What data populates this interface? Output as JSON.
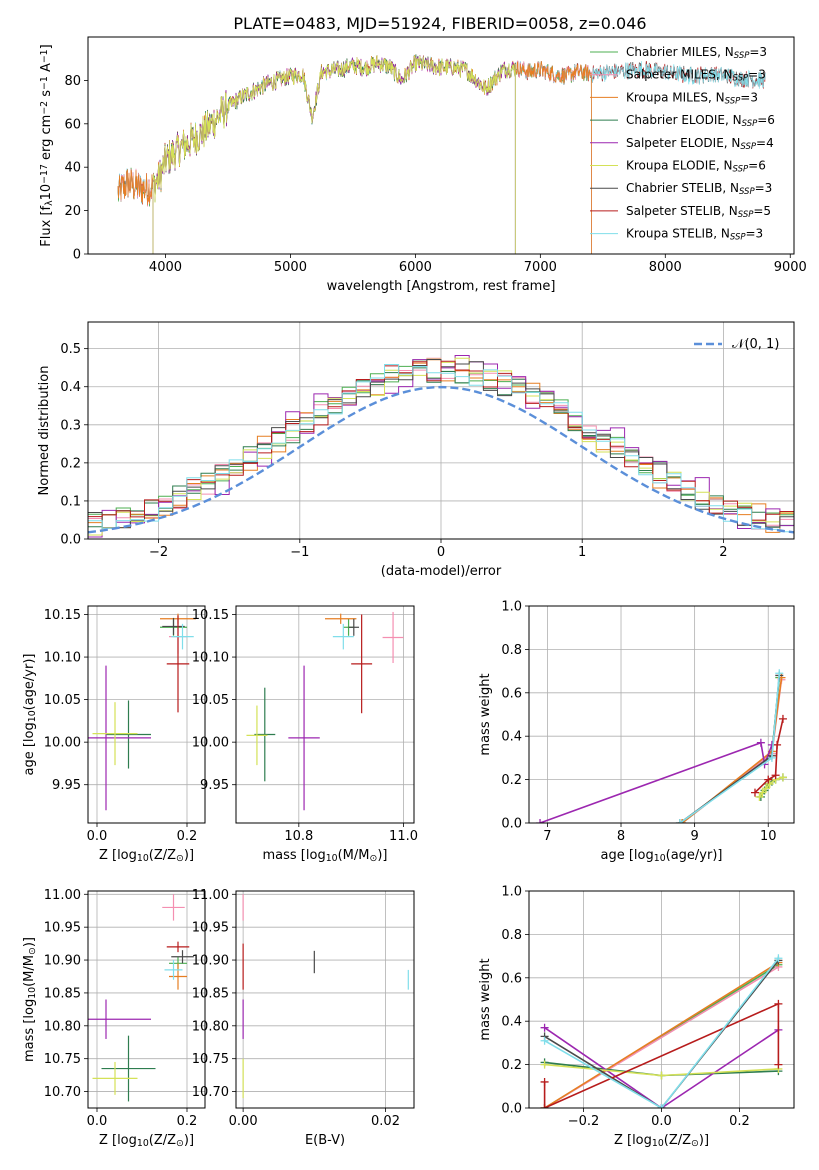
{
  "figure_title": "PLATE=0483, MJD=51924, FIBERID=0058, z=0.046",
  "colors": {
    "chabrier_miles": "#4caf50",
    "salpeter_miles": "#f48fb1",
    "kroupa_miles": "#e67e22",
    "chabrier_elodie": "#2e7d4f",
    "salpeter_elodie": "#9c27b0",
    "kroupa_elodie": "#d4e157",
    "chabrier_stelib": "#4a4a4a",
    "salpeter_stelib": "#b71c1c",
    "kroupa_stelib": "#80deea",
    "normal_curve": "#5b8fd9",
    "grid": "#b0b0b0"
  },
  "chart_data": [
    {
      "id": "spectrum",
      "type": "line",
      "xlabel": "wavelength [Angstrom, rest frame]",
      "ylabel_parts": [
        "Flux [f",
        "λ",
        "10",
        "−17",
        " erg cm",
        "−2",
        " s",
        "−1",
        " A",
        "−1",
        "]"
      ],
      "xlim": [
        3380,
        9030
      ],
      "ylim": [
        0,
        100
      ],
      "xticks": [
        4000,
        5000,
        6000,
        7000,
        8000,
        9000
      ],
      "yticks": [
        0,
        20,
        40,
        60,
        80
      ],
      "grid": false,
      "legend_location": "top-right",
      "legend": [
        {
          "key": "chabrier_miles",
          "label": "Chabrier MILES, N",
          "sub": "SSP",
          "tail": "=3"
        },
        {
          "key": "salpeter_miles",
          "label": "Salpeter MILES, N",
          "sub": "SSP",
          "tail": "=3"
        },
        {
          "key": "kroupa_miles",
          "label": "Kroupa MILES, N",
          "sub": "SSP",
          "tail": "=3"
        },
        {
          "key": "chabrier_elodie",
          "label": "Chabrier ELODIE, N",
          "sub": "SSP",
          "tail": "=6"
        },
        {
          "key": "salpeter_elodie",
          "label": "Salpeter ELODIE, N",
          "sub": "SSP",
          "tail": "=4"
        },
        {
          "key": "kroupa_elodie",
          "label": "Kroupa ELODIE, N",
          "sub": "SSP",
          "tail": "=6"
        },
        {
          "key": "chabrier_stelib",
          "label": "Chabrier STELIB, N",
          "sub": "SSP",
          "tail": "=3"
        },
        {
          "key": "salpeter_stelib",
          "label": "Salpeter STELIB, N",
          "sub": "SSP",
          "tail": "=5"
        },
        {
          "key": "kroupa_stelib",
          "label": "Kroupa STELIB, N",
          "sub": "SSP",
          "tail": "=3"
        }
      ],
      "spectrum_anchor_points": {
        "x": [
          3620,
          3700,
          3800,
          3900,
          3950,
          4000,
          4100,
          4200,
          4300,
          4400,
          4500,
          4600,
          4700,
          4800,
          4900,
          5000,
          5100,
          5175,
          5250,
          5400,
          5500,
          5600,
          5700,
          5800,
          5890,
          6000,
          6100,
          6200,
          6300,
          6400,
          6563,
          6700,
          6800,
          6900,
          7000,
          7100,
          7200,
          7300,
          7400,
          7600,
          7800,
          8000,
          8200,
          8400,
          8600,
          8800
        ],
        "y": [
          28,
          33,
          30,
          31,
          35,
          43,
          48,
          52,
          56,
          62,
          68,
          72,
          75,
          78,
          80,
          82,
          83,
          63,
          84,
          85,
          87,
          86,
          88,
          86,
          80,
          88,
          87,
          86,
          86,
          85,
          76,
          85,
          86,
          84,
          85,
          83,
          82,
          84,
          83,
          84,
          85,
          84,
          82,
          83,
          81,
          80
        ]
      },
      "coverage": {
        "miles": [
          3620,
          7410
        ],
        "elodie": [
          3900,
          6800
        ],
        "stelib": [
          3620,
          8800
        ]
      }
    },
    {
      "id": "residuals",
      "type": "histogram",
      "xlabel": "(data-model)/error",
      "ylabel": "Normed distribution",
      "xlim": [
        -2.5,
        2.5
      ],
      "ylim": [
        0,
        0.57
      ],
      "xticks": [
        -2,
        -1,
        0,
        1,
        2
      ],
      "yticks": [
        0.0,
        0.1,
        0.2,
        0.3,
        0.4,
        0.5
      ],
      "grid": true,
      "legend_location": "top-right",
      "reference_curve": {
        "label": "𝒩(0, 1)",
        "mean": 0,
        "sigma": 1
      },
      "bins": {
        "start": -2.5,
        "width": 0.1,
        "count": 50
      }
    },
    {
      "id": "age_vs_Z",
      "type": "scatter",
      "xlabel_parts": [
        "Z [log",
        "10",
        "(Z/Z",
        "⊙",
        ")]"
      ],
      "ylabel_parts": [
        "age  [log",
        "10",
        "(age/yr)]"
      ],
      "xlim": [
        -0.02,
        0.24
      ],
      "ylim": [
        9.905,
        10.16
      ],
      "xticks": [
        0.0,
        0.2
      ],
      "yticks": [
        9.95,
        10.0,
        10.05,
        10.1,
        10.15
      ],
      "grid": true,
      "points": [
        {
          "key": "chabrier_miles",
          "x": 0.17,
          "xerr": 0.03,
          "y": 10.135,
          "yerr": 0.01
        },
        {
          "key": "salpeter_miles",
          "x": 0.18,
          "xerr": 0.02,
          "y": 10.124,
          "yerr": 0.02
        },
        {
          "key": "kroupa_miles",
          "x": 0.18,
          "xerr": 0.04,
          "y": 10.145,
          "yerr": 0.006
        },
        {
          "key": "chabrier_elodie",
          "x": 0.07,
          "xerr": 0.05,
          "y": 10.009,
          "yerr": 0.04
        },
        {
          "key": "salpeter_elodie",
          "x": 0.02,
          "xerr": 0.1,
          "y": 10.005,
          "yerr": 0.085
        },
        {
          "key": "kroupa_elodie",
          "x": 0.04,
          "xerr": 0.05,
          "y": 10.01,
          "yerr": 0.037
        },
        {
          "key": "chabrier_stelib",
          "x": 0.17,
          "xerr": 0.025,
          "y": 10.136,
          "yerr": 0.01
        },
        {
          "key": "salpeter_stelib",
          "x": 0.18,
          "xerr": 0.025,
          "y": 10.092,
          "yerr": 0.057
        },
        {
          "key": "kroupa_stelib",
          "x": 0.19,
          "xerr": 0.025,
          "y": 10.124,
          "yerr": 0.015
        }
      ]
    },
    {
      "id": "age_vs_mass",
      "type": "scatter",
      "xlabel_parts": [
        "mass [log",
        "10",
        "(M/M",
        "⊙",
        ")]"
      ],
      "ylabel_parts": [],
      "xlim": [
        10.68,
        11.02
      ],
      "ylim": [
        9.905,
        10.16
      ],
      "xticks": [
        10.8,
        11.0
      ],
      "yticks": [
        9.95,
        10.0,
        10.05,
        10.1,
        10.15
      ],
      "grid": true,
      "points": [
        {
          "key": "chabrier_miles",
          "x": 10.895,
          "xerr": 0.01,
          "y": 10.135,
          "yerr": 0.01
        },
        {
          "key": "salpeter_miles",
          "x": 10.98,
          "xerr": 0.02,
          "y": 10.123,
          "yerr": 0.03
        },
        {
          "key": "kroupa_miles",
          "x": 10.88,
          "xerr": 0.03,
          "y": 10.145,
          "yerr": 0.006
        },
        {
          "key": "chabrier_elodie",
          "x": 10.735,
          "xerr": 0.02,
          "y": 10.009,
          "yerr": 0.055
        },
        {
          "key": "salpeter_elodie",
          "x": 10.81,
          "xerr": 0.03,
          "y": 10.005,
          "yerr": 0.085
        },
        {
          "key": "kroupa_elodie",
          "x": 10.72,
          "xerr": 0.02,
          "y": 10.008,
          "yerr": 0.035
        },
        {
          "key": "chabrier_stelib",
          "x": 10.905,
          "xerr": 0.01,
          "y": 10.135,
          "yerr": 0.01
        },
        {
          "key": "salpeter_stelib",
          "x": 10.92,
          "xerr": 0.02,
          "y": 10.092,
          "yerr": 0.058
        },
        {
          "key": "kroupa_stelib",
          "x": 10.885,
          "xerr": 0.02,
          "y": 10.124,
          "yerr": 0.015
        }
      ]
    },
    {
      "id": "weight_vs_age",
      "type": "line",
      "xlabel_parts": [
        "age  [log",
        "10",
        "(age/yr)]"
      ],
      "ylabel": "mass weight",
      "xlim": [
        6.75,
        10.35
      ],
      "ylim": [
        0,
        1.0
      ],
      "xticks": [
        7,
        8,
        9,
        10
      ],
      "yticks": [
        0.0,
        0.2,
        0.4,
        0.6,
        0.8,
        1.0
      ],
      "grid": true,
      "series": [
        {
          "key": "chabrier_miles",
          "x": [
            8.83,
            10.05,
            10.15
          ],
          "y": [
            0.0,
            0.32,
            0.67
          ]
        },
        {
          "key": "salpeter_miles",
          "x": [
            8.83,
            10.05,
            10.18
          ],
          "y": [
            0.0,
            0.32,
            0.66
          ]
        },
        {
          "key": "kroupa_miles",
          "x": [
            8.83,
            10.05,
            10.18
          ],
          "y": [
            0.0,
            0.33,
            0.67
          ]
        },
        {
          "key": "chabrier_elodie",
          "x": [
            9.9,
            9.95,
            10.0,
            10.05,
            10.1,
            10.2
          ],
          "y": [
            0.12,
            0.15,
            0.18,
            0.19,
            0.2,
            0.21
          ]
        },
        {
          "key": "salpeter_elodie",
          "x": [
            6.9,
            9.9,
            9.95,
            10.05
          ],
          "y": [
            0.0,
            0.37,
            0.27,
            0.36
          ]
        },
        {
          "key": "kroupa_elodie",
          "x": [
            9.88,
            9.92,
            9.97,
            10.02,
            10.1,
            10.2
          ],
          "y": [
            0.12,
            0.14,
            0.16,
            0.18,
            0.2,
            0.21
          ]
        },
        {
          "key": "chabrier_stelib",
          "x": [
            8.8,
            10.05,
            10.15
          ],
          "y": [
            0.0,
            0.31,
            0.68
          ]
        },
        {
          "key": "salpeter_stelib",
          "x": [
            9.82,
            10.0,
            10.1,
            10.12,
            10.2
          ],
          "y": [
            0.14,
            0.2,
            0.22,
            0.36,
            0.48
          ]
        },
        {
          "key": "kroupa_stelib",
          "x": [
            8.8,
            10.05,
            10.15
          ],
          "y": [
            0.0,
            0.3,
            0.69
          ]
        }
      ]
    },
    {
      "id": "mass_vs_Z",
      "type": "scatter",
      "xlabel_parts": [
        "Z [log",
        "10",
        "(Z/Z",
        "⊙",
        ")]"
      ],
      "ylabel_parts": [
        "mass [log",
        "10",
        "(M/M",
        "⊙",
        ")]"
      ],
      "xlim": [
        -0.02,
        0.24
      ],
      "ylim": [
        10.675,
        11.005
      ],
      "xticks": [
        0.0,
        0.2
      ],
      "yticks": [
        10.7,
        10.75,
        10.8,
        10.85,
        10.9,
        10.95,
        11.0
      ],
      "grid": true,
      "points": [
        {
          "key": "chabrier_miles",
          "x": 0.18,
          "xerr": 0.02,
          "y": 10.895,
          "yerr": 0.01
        },
        {
          "key": "salpeter_miles",
          "x": 0.17,
          "xerr": 0.025,
          "y": 10.98,
          "yerr": 0.02
        },
        {
          "key": "kroupa_miles",
          "x": 0.18,
          "xerr": 0.02,
          "y": 10.875,
          "yerr": 0.02
        },
        {
          "key": "chabrier_elodie",
          "x": 0.07,
          "xerr": 0.06,
          "y": 10.735,
          "yerr": 0.05
        },
        {
          "key": "salpeter_elodie",
          "x": 0.02,
          "xerr": 0.1,
          "y": 10.81,
          "yerr": 0.03
        },
        {
          "key": "kroupa_elodie",
          "x": 0.04,
          "xerr": 0.05,
          "y": 10.72,
          "yerr": 0.025
        },
        {
          "key": "chabrier_stelib",
          "x": 0.19,
          "xerr": 0.025,
          "y": 10.905,
          "yerr": 0.01
        },
        {
          "key": "salpeter_stelib",
          "x": 0.18,
          "xerr": 0.025,
          "y": 10.92,
          "yerr": 0.008
        },
        {
          "key": "kroupa_stelib",
          "x": 0.17,
          "xerr": 0.02,
          "y": 10.885,
          "yerr": 0.015
        }
      ]
    },
    {
      "id": "mass_vs_ebv",
      "type": "scatter",
      "xlabel": "E(B-V)",
      "ylabel_parts": [],
      "xlim": [
        -0.001,
        0.024
      ],
      "ylim": [
        10.675,
        11.005
      ],
      "xticks": [
        0.0,
        0.02
      ],
      "yticks": [
        10.7,
        10.75,
        10.8,
        10.85,
        10.9,
        10.95,
        11.0
      ],
      "grid": true,
      "points": [
        {
          "key": "salpeter_miles",
          "x": 0.0,
          "xerr": 0,
          "y": 10.98,
          "yerr": 0.02
        },
        {
          "key": "salpeter_stelib",
          "x": 0.0,
          "xerr": 0,
          "y": 10.89,
          "yerr": 0.035
        },
        {
          "key": "salpeter_elodie",
          "x": 0.0,
          "xerr": 0,
          "y": 10.81,
          "yerr": 0.03
        },
        {
          "key": "kroupa_elodie",
          "x": 0.0,
          "xerr": 0,
          "y": 10.72,
          "yerr": 0.03
        },
        {
          "key": "chabrier_stelib",
          "x": 0.01,
          "xerr": 0,
          "y": 10.897,
          "yerr": 0.017
        },
        {
          "key": "kroupa_stelib",
          "x": 0.0232,
          "xerr": 0,
          "y": 10.87,
          "yerr": 0.015
        }
      ]
    },
    {
      "id": "weight_vs_Z",
      "type": "line",
      "xlabel_parts": [
        "Z [log",
        "10",
        "(Z/Z",
        "⊙",
        ")]"
      ],
      "ylabel": "mass weight",
      "xlim": [
        -0.34,
        0.34
      ],
      "ylim": [
        0,
        1.0
      ],
      "xticks": [
        -0.2,
        0.0,
        0.2
      ],
      "yticks": [
        0.0,
        0.2,
        0.4,
        0.6,
        0.8,
        1.0
      ],
      "grid": true,
      "series": [
        {
          "key": "chabrier_miles",
          "x": [
            -0.3,
            0.3
          ],
          "y": [
            0.0,
            0.66
          ]
        },
        {
          "key": "salpeter_miles",
          "x": [
            -0.3,
            0.3
          ],
          "y": [
            0.0,
            0.65
          ]
        },
        {
          "key": "kroupa_miles",
          "x": [
            -0.3,
            0.3
          ],
          "y": [
            0.0,
            0.67
          ]
        },
        {
          "key": "chabrier_elodie",
          "x": [
            -0.3,
            0.0,
            0.3
          ],
          "y": [
            0.21,
            0.15,
            0.17
          ]
        },
        {
          "key": "salpeter_elodie",
          "x": [
            -0.3,
            0.0,
            0.3
          ],
          "y": [
            0.37,
            0.0,
            0.36
          ]
        },
        {
          "key": "kroupa_elodie",
          "x": [
            -0.3,
            0.0,
            0.3
          ],
          "y": [
            0.2,
            0.15,
            0.18
          ]
        },
        {
          "key": "chabrier_stelib",
          "x": [
            -0.3,
            0.0,
            0.3
          ],
          "y": [
            0.33,
            0.0,
            0.68
          ]
        },
        {
          "key": "salpeter_stelib",
          "x": [
            -0.3,
            -0.3,
            0.3,
            0.3
          ],
          "y": [
            0.12,
            0.0,
            0.48,
            0.2
          ]
        },
        {
          "key": "kroupa_stelib",
          "x": [
            -0.3,
            0.0,
            0.3
          ],
          "y": [
            0.31,
            0.0,
            0.69
          ]
        }
      ]
    }
  ]
}
